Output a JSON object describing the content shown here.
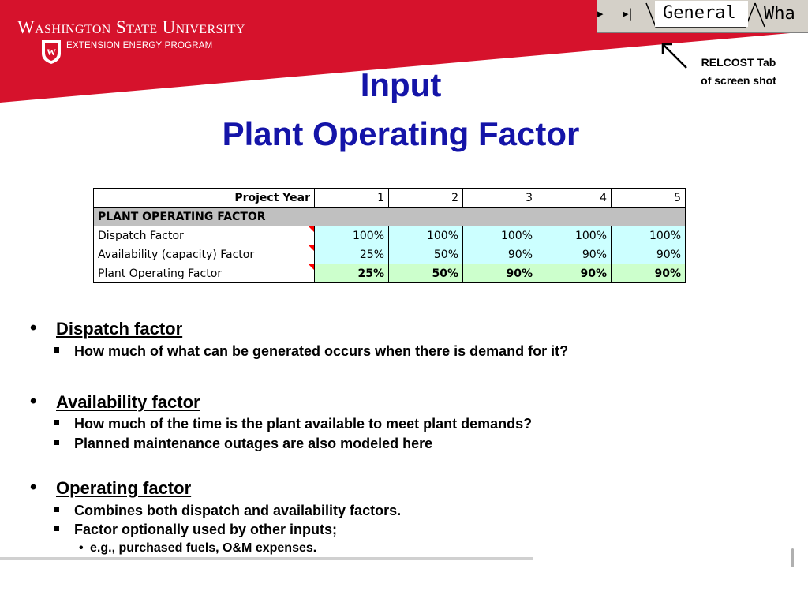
{
  "header": {
    "university": "Washington State University",
    "program": "EXTENSION ENERGY PROGRAM"
  },
  "tabs": {
    "active": "General",
    "next": "Wha"
  },
  "callout": {
    "line1": "RELCOST Tab",
    "line2": "of screen shot"
  },
  "title": {
    "line1": "Input",
    "line2": "Plant Operating Factor"
  },
  "table": {
    "header_label": "Project Year",
    "years": [
      "1",
      "2",
      "3",
      "4",
      "5"
    ],
    "section": "PLANT OPERATING FACTOR",
    "rows": [
      {
        "label": "Dispatch Factor",
        "values": [
          "100%",
          "100%",
          "100%",
          "100%",
          "100%"
        ]
      },
      {
        "label": "Availability (capacity) Factor",
        "values": [
          "25%",
          "50%",
          "90%",
          "90%",
          "90%"
        ]
      },
      {
        "label": "Plant Operating Factor",
        "values": [
          "25%",
          "50%",
          "90%",
          "90%",
          "90%"
        ]
      }
    ]
  },
  "bullets": [
    {
      "title": "Dispatch factor",
      "subs": [
        "How much of what can be generated occurs when there is demand for it?"
      ]
    },
    {
      "title": "Availability factor",
      "subs": [
        "How much of the time is the plant available to meet plant demands?",
        "Planned maintenance outages are also modeled here"
      ]
    },
    {
      "title": "Operating factor",
      "subs": [
        "Combines both dispatch and availability factors.",
        "Factor optionally used by other inputs;"
      ],
      "subsub": "e.g., purchased fuels, O&M expenses."
    }
  ],
  "colors": {
    "banner_red": "#d6122c",
    "title_blue": "#1414a8",
    "cell_cyan": "#ccffff",
    "cell_green": "#ccffcc",
    "section_gray": "#c0c0c0"
  }
}
